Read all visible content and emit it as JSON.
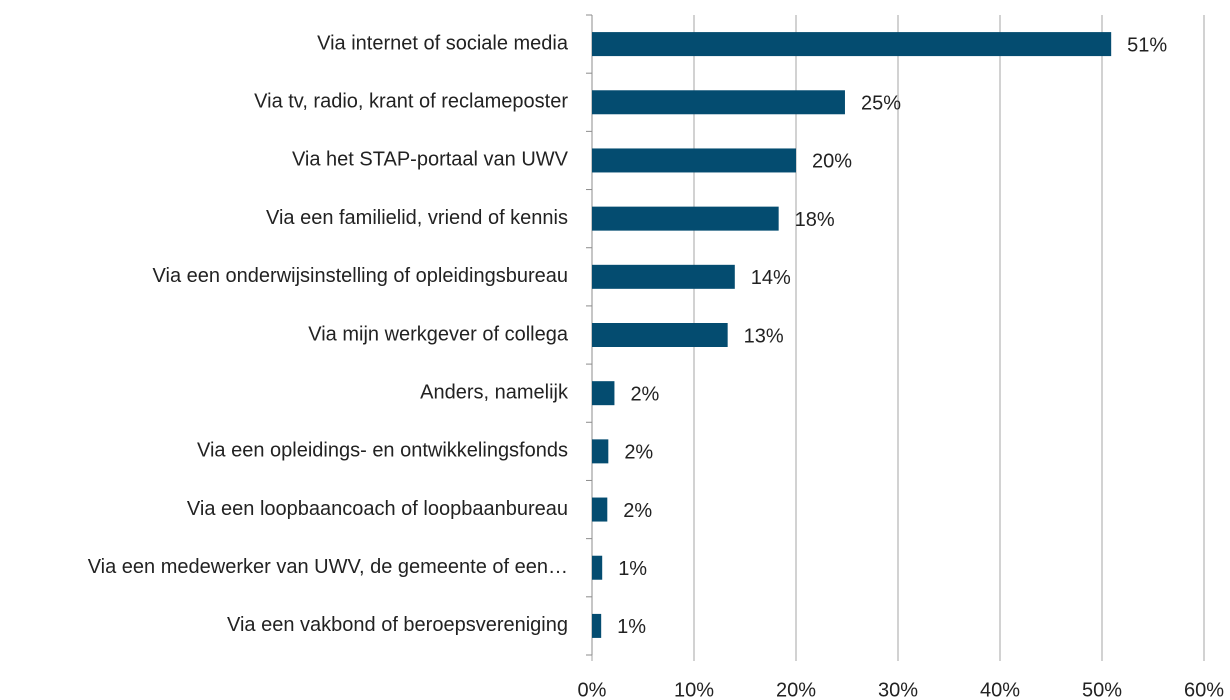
{
  "chart_data": {
    "type": "barh",
    "categories": [
      "Via internet of sociale media",
      "Via tv, radio, krant of reclameposter",
      "Via het STAP-portaal van UWV",
      "Via een familielid, vriend of kennis",
      "Via een onderwijsinstelling of opleidingsbureau",
      "Via mijn werkgever of collega",
      "Anders, namelijk",
      "Via een opleidings- en ontwikkelingsfonds",
      "Via een loopbaancoach of loopbaanbureau",
      "Via een medewerker van UWV, de gemeente of een…",
      "Via een vakbond of beroepsvereniging"
    ],
    "values": [
      50.9,
      24.8,
      20,
      18.3,
      14,
      13.3,
      2.2,
      1.6,
      1.5,
      1,
      0.9
    ],
    "value_labels": [
      "51%",
      "25%",
      "20%",
      "18%",
      "14%",
      "13%",
      "2%",
      "2%",
      "2%",
      "1%",
      "1%"
    ],
    "color": "#044c70",
    "xlim": [
      0,
      60
    ],
    "xticks": [
      {
        "value": 0,
        "label": "0%"
      },
      {
        "value": 10,
        "label": "10%"
      },
      {
        "value": 20,
        "label": "20%"
      },
      {
        "value": 30,
        "label": "30%"
      },
      {
        "value": 40,
        "label": "40%"
      },
      {
        "value": 50,
        "label": "50%"
      },
      {
        "value": 60,
        "label": "60%"
      }
    ],
    "grid": true
  }
}
